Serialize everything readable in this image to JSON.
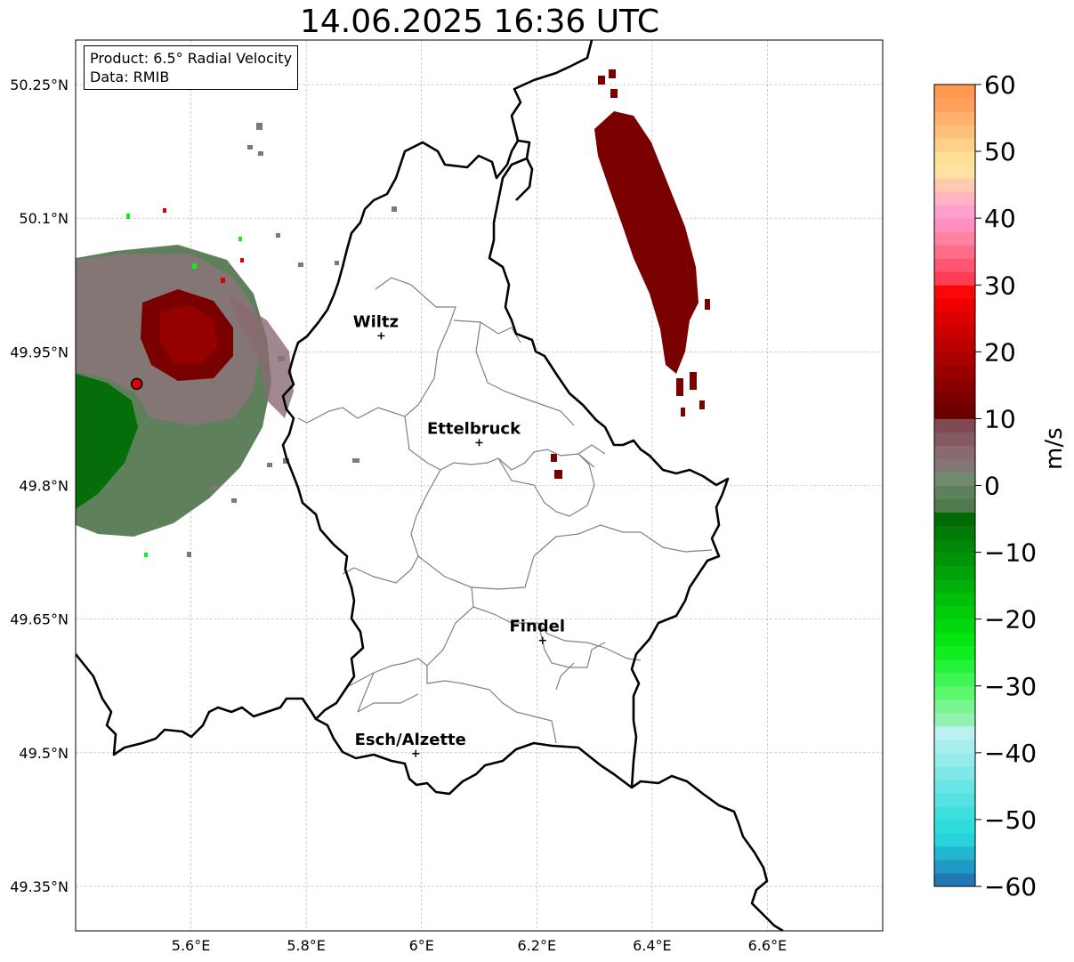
{
  "title": "14.06.2025 16:36 UTC",
  "info": {
    "product": "Product: 6.5° Radial Velocity",
    "data": "Data: RMIB"
  },
  "map": {
    "extent": {
      "lon": [
        5.4,
        6.8
      ],
      "lat": [
        49.3,
        50.3
      ]
    },
    "lon_ticks": [
      {
        "value": 5.6,
        "label": "5.6°E"
      },
      {
        "value": 5.8,
        "label": "5.8°E"
      },
      {
        "value": 6.0,
        "label": "6°E"
      },
      {
        "value": 6.2,
        "label": "6.2°E"
      },
      {
        "value": 6.4,
        "label": "6.4°E"
      },
      {
        "value": 6.6,
        "label": "6.6°E"
      }
    ],
    "lat_ticks": [
      {
        "value": 50.25,
        "label": "50.25°N"
      },
      {
        "value": 50.1,
        "label": "50.1°N"
      },
      {
        "value": 49.95,
        "label": "49.95°N"
      },
      {
        "value": 49.8,
        "label": "49.8°N"
      },
      {
        "value": 49.65,
        "label": "49.65°N"
      },
      {
        "value": 49.5,
        "label": "49.5°N"
      },
      {
        "value": 49.35,
        "label": "49.35°N"
      }
    ],
    "grid": true,
    "radar_site": {
      "lon": 5.506,
      "lat": 49.914
    },
    "cities": [
      {
        "name": "Wiltz",
        "lon": 5.93,
        "lat": 49.968
      },
      {
        "name": "Ettelbruck",
        "lon": 6.1,
        "lat": 49.848
      },
      {
        "name": "Findel",
        "lon": 6.21,
        "lat": 49.626
      },
      {
        "name": "Esch/Alzette",
        "lon": 5.99,
        "lat": 49.499
      }
    ]
  },
  "colorbar": {
    "unit": "m/s",
    "min": -60,
    "max": 60,
    "ticks": [
      {
        "value": 60,
        "label": "60"
      },
      {
        "value": 50,
        "label": "50"
      },
      {
        "value": 40,
        "label": "40"
      },
      {
        "value": 30,
        "label": "30"
      },
      {
        "value": 20,
        "label": "20"
      },
      {
        "value": 10,
        "label": "10"
      },
      {
        "value": 0,
        "label": "0"
      },
      {
        "value": -10,
        "label": "−10"
      },
      {
        "value": -20,
        "label": "−20"
      },
      {
        "value": -30,
        "label": "−30"
      },
      {
        "value": -40,
        "label": "−40"
      },
      {
        "value": -50,
        "label": "−50"
      },
      {
        "value": -60,
        "label": "−60"
      }
    ],
    "segments": [
      {
        "from": -60,
        "to": -58,
        "color": "#1f77b4"
      },
      {
        "from": -58,
        "to": -56,
        "color": "#1f98c4"
      },
      {
        "from": -56,
        "to": -54,
        "color": "#22b5cf"
      },
      {
        "from": -54,
        "to": -52,
        "color": "#27d2da"
      },
      {
        "from": -52,
        "to": -50,
        "color": "#2fdcdc"
      },
      {
        "from": -50,
        "to": -48,
        "color": "#3fdfdf"
      },
      {
        "from": -48,
        "to": -46,
        "color": "#55e2e2"
      },
      {
        "from": -46,
        "to": -44,
        "color": "#6ae5e5"
      },
      {
        "from": -44,
        "to": -42,
        "color": "#80e8e8"
      },
      {
        "from": -42,
        "to": -40,
        "color": "#96ebeb"
      },
      {
        "from": -40,
        "to": -38,
        "color": "#a8eeee"
      },
      {
        "from": -38,
        "to": -36,
        "color": "#bbf1f1"
      },
      {
        "from": -36,
        "to": -34,
        "color": "#92f2b0"
      },
      {
        "from": -34,
        "to": -32,
        "color": "#78f58f"
      },
      {
        "from": -32,
        "to": -30,
        "color": "#5af76f"
      },
      {
        "from": -30,
        "to": -28,
        "color": "#3ff554"
      },
      {
        "from": -28,
        "to": -26,
        "color": "#25f23a"
      },
      {
        "from": -26,
        "to": -24,
        "color": "#10ee20"
      },
      {
        "from": -24,
        "to": -22,
        "color": "#04e512"
      },
      {
        "from": -22,
        "to": -20,
        "color": "#02d80e"
      },
      {
        "from": -20,
        "to": -18,
        "color": "#01cc0c"
      },
      {
        "from": -18,
        "to": -16,
        "color": "#00bf0a"
      },
      {
        "from": -16,
        "to": -14,
        "color": "#00b009"
      },
      {
        "from": -14,
        "to": -12,
        "color": "#00a208"
      },
      {
        "from": -12,
        "to": -10,
        "color": "#009507"
      },
      {
        "from": -10,
        "to": -8,
        "color": "#008706"
      },
      {
        "from": -8,
        "to": -6,
        "color": "#007a05"
      },
      {
        "from": -6,
        "to": -4,
        "color": "#006b04"
      },
      {
        "from": -4,
        "to": -2,
        "color": "#4e7a4e"
      },
      {
        "from": -2,
        "to": 0,
        "color": "#5e815c"
      },
      {
        "from": 0,
        "to": 2,
        "color": "#6f8a6c"
      },
      {
        "from": 2,
        "to": 4,
        "color": "#857676"
      },
      {
        "from": 4,
        "to": 6,
        "color": "#8a6a72"
      },
      {
        "from": 6,
        "to": 8,
        "color": "#865a62"
      },
      {
        "from": 8,
        "to": 10,
        "color": "#7f4a52"
      },
      {
        "from": 10,
        "to": 12,
        "color": "#6a0000"
      },
      {
        "from": 12,
        "to": 14,
        "color": "#7a0000"
      },
      {
        "from": 14,
        "to": 16,
        "color": "#8a0000"
      },
      {
        "from": 16,
        "to": 18,
        "color": "#9a0000"
      },
      {
        "from": 18,
        "to": 20,
        "color": "#aa0000"
      },
      {
        "from": 20,
        "to": 22,
        "color": "#bb0000"
      },
      {
        "from": 22,
        "to": 24,
        "color": "#cc0000"
      },
      {
        "from": 24,
        "to": 26,
        "color": "#dd0000"
      },
      {
        "from": 26,
        "to": 28,
        "color": "#ee0000"
      },
      {
        "from": 28,
        "to": 30,
        "color": "#fa0808"
      },
      {
        "from": 30,
        "to": 32,
        "color": "#ff3d55"
      },
      {
        "from": 32,
        "to": 34,
        "color": "#ff5570"
      },
      {
        "from": 34,
        "to": 36,
        "color": "#ff6c88"
      },
      {
        "from": 36,
        "to": 38,
        "color": "#ff82a3"
      },
      {
        "from": 38,
        "to": 40,
        "color": "#ff8fc0"
      },
      {
        "from": 40,
        "to": 42,
        "color": "#ff9fd0"
      },
      {
        "from": 42,
        "to": 44,
        "color": "#ffb4c0"
      },
      {
        "from": 44,
        "to": 46,
        "color": "#ffcab0"
      },
      {
        "from": 46,
        "to": 48,
        "color": "#ffe2a0"
      },
      {
        "from": 48,
        "to": 50,
        "color": "#ffe096"
      },
      {
        "from": 50,
        "to": 52,
        "color": "#ffd08c"
      },
      {
        "from": 52,
        "to": 54,
        "color": "#ffc07c"
      },
      {
        "from": 54,
        "to": 56,
        "color": "#ffb06c"
      },
      {
        "from": 56,
        "to": 58,
        "color": "#ffa05c"
      },
      {
        "from": 58,
        "to": 60,
        "color": "#ff9850"
      }
    ]
  },
  "colors": {
    "inbound_dark": "#006b04",
    "inbound_mix": "#5e815c",
    "outbound_mix": "#857676",
    "outbound_dark": "#7a0000",
    "radar_site": "#e00000",
    "border": "#000000",
    "canton_lines": "#808080",
    "grid": "#b0b0b0"
  }
}
